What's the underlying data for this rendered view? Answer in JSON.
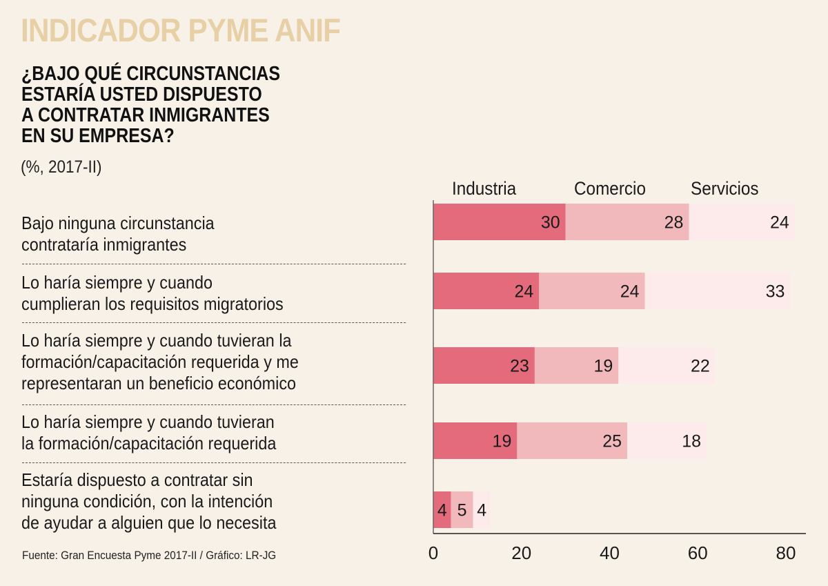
{
  "header": {
    "brand": "INDICADOR PYME ANIF",
    "question": "¿BAJO QUÉ CIRCUNSTANCIAS\nESTARÍA USTED DISPUESTO\nA CONTRATAR INMIGRANTES\nEN SU EMPRESA?",
    "units": "(%, 2017-II)"
  },
  "footer": {
    "source": "Fuente: Gran Encuesta Pyme 2017-II / Gráfico: LR-JG"
  },
  "colors": {
    "background": "#f8f1e8",
    "brand": "#e7cfa6",
    "industria": "#e46b7c",
    "comercio": "#f2b9bd",
    "servicios": "#fdeaea",
    "axis": "#555555"
  },
  "chart_data": {
    "type": "bar",
    "orientation": "horizontal",
    "stacked": true,
    "title": "¿Bajo qué circunstancias estaría usted dispuesto a contratar inmigrantes en su empresa?",
    "subtitle": "(%, 2017-II)",
    "xlabel": "",
    "ylabel": "",
    "xlim": [
      0,
      80
    ],
    "xticks": [
      0,
      20,
      40,
      60,
      80
    ],
    "grid": false,
    "legend_position": "top",
    "categories": [
      "Bajo ninguna circunstancia\ncontrataría inmigrantes",
      "Lo haría siempre y cuando\ncumplieran los requisitos migratorios",
      "Lo haría siempre y cuando tuvieran la\nformación/capacitación requerida y me\nrepresentaran un beneficio económico",
      "Lo haría siempre y cuando tuvieran\nla formación/capacitación requerida",
      "Estaría dispuesto a contratar sin\nninguna condición, con la intención\nde ayudar a alguien que lo necesita"
    ],
    "series": [
      {
        "name": "Industria",
        "color": "#e46b7c",
        "values": [
          30,
          24,
          23,
          19,
          4
        ]
      },
      {
        "name": "Comercio",
        "color": "#f2b9bd",
        "values": [
          28,
          24,
          19,
          25,
          5
        ]
      },
      {
        "name": "Servicios",
        "color": "#fdeaea",
        "values": [
          24,
          33,
          22,
          18,
          4
        ]
      }
    ]
  }
}
